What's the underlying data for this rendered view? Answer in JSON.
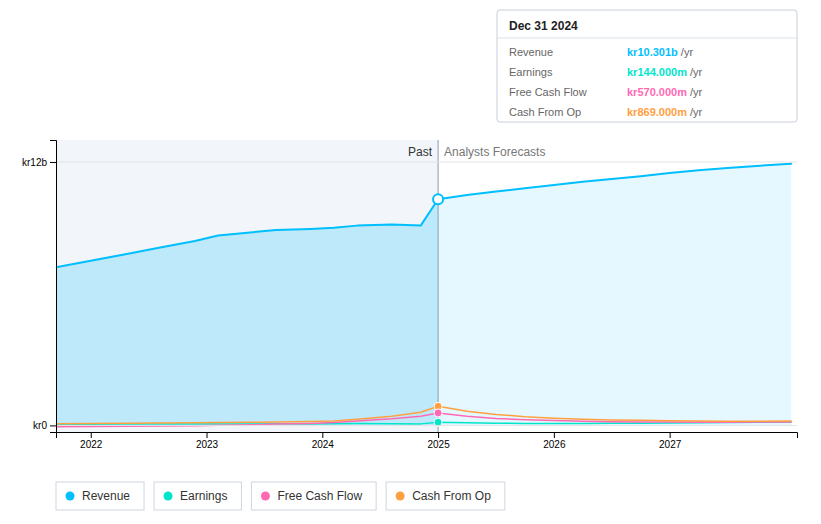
{
  "chart_data": {
    "type": "line",
    "x": [
      2021.7,
      2022.0,
      2022.3,
      2022.6,
      2022.9,
      2023.1,
      2023.4,
      2023.6,
      2023.9,
      2024.1,
      2024.3,
      2024.6,
      2024.85,
      2025.0,
      2025.0,
      2025.25,
      2025.5,
      2025.75,
      2026.0,
      2026.25,
      2026.5,
      2026.75,
      2027.0,
      2027.25,
      2027.5,
      2027.75,
      2028.05
    ],
    "series": [
      {
        "name": "Revenue",
        "color": "#00bfff",
        "type": "area",
        "values": [
          7.2,
          7.5,
          7.8,
          8.1,
          8.4,
          8.65,
          8.8,
          8.9,
          8.95,
          9.0,
          9.1,
          9.15,
          9.1,
          10.301,
          10.301,
          10.5,
          10.65,
          10.8,
          10.95,
          11.1,
          11.22,
          11.35,
          11.5,
          11.62,
          11.72,
          11.82,
          11.92
        ]
      },
      {
        "name": "Earnings",
        "color": "#00e5cc",
        "type": "line",
        "values": [
          0.04,
          0.05,
          0.06,
          0.065,
          0.06,
          0.07,
          0.065,
          0.075,
          0.07,
          0.08,
          0.085,
          0.075,
          0.07,
          0.144,
          0.144,
          0.12,
          0.1,
          0.09,
          0.085,
          0.09,
          0.095,
          0.1,
          0.11,
          0.12,
          0.13,
          0.14,
          0.15
        ]
      },
      {
        "name": "Free Cash Flow",
        "color": "#ff69b4",
        "type": "line",
        "values": [
          -0.06,
          -0.05,
          -0.04,
          -0.03,
          -0.02,
          0.01,
          0.03,
          0.06,
          0.09,
          0.13,
          0.2,
          0.3,
          0.42,
          0.57,
          0.57,
          0.42,
          0.32,
          0.26,
          0.22,
          0.19,
          0.17,
          0.16,
          0.15,
          0.14,
          0.14,
          0.15,
          0.16
        ]
      },
      {
        "name": "Cash From Op",
        "color": "#ffa040",
        "type": "line",
        "values": [
          0.08,
          0.09,
          0.1,
          0.11,
          0.12,
          0.13,
          0.14,
          0.16,
          0.18,
          0.2,
          0.28,
          0.42,
          0.6,
          0.869,
          0.869,
          0.65,
          0.5,
          0.4,
          0.33,
          0.28,
          0.25,
          0.23,
          0.21,
          0.2,
          0.19,
          0.19,
          0.2
        ]
      }
    ],
    "xlim": [
      2021.7,
      2028.1
    ],
    "ylim": [
      -0.3,
      13.0
    ],
    "xticks": [
      2022,
      2023,
      2024,
      2025,
      2026,
      2027
    ],
    "yticks": [
      {
        "value": 0,
        "label": "kr0"
      },
      {
        "value": 12,
        "label": "kr12b"
      }
    ],
    "grid": true,
    "legend": "bottom",
    "split_x": 2025.0,
    "annotations": [
      "Past",
      "Analysts Forecasts"
    ],
    "tooltip": {
      "title": "Dec 31 2024",
      "values": [
        10.301,
        0.144,
        0.57,
        0.869
      ],
      "value_labels": [
        "kr10.301b",
        "kr144.000m",
        "kr570.000m",
        "kr869.000m"
      ],
      "suffix": " /yr"
    }
  }
}
